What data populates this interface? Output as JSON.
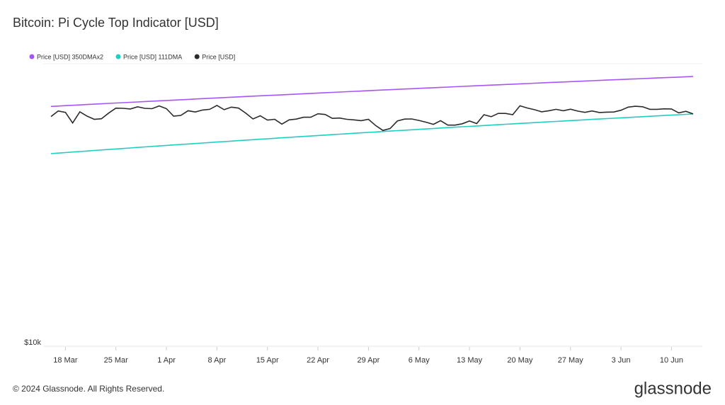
{
  "chart_data": {
    "type": "line",
    "title": "Bitcoin: Pi Cycle Top Indicator [USD]",
    "categories": [
      null,
      null,
      "18 Mar",
      null,
      null,
      null,
      null,
      null,
      null,
      "25 Mar",
      null,
      null,
      null,
      null,
      null,
      null,
      "1 Apr",
      null,
      null,
      null,
      null,
      null,
      null,
      "8 Apr",
      null,
      null,
      null,
      null,
      null,
      null,
      "15 Apr",
      null,
      null,
      null,
      null,
      null,
      null,
      "22 Apr",
      null,
      null,
      null,
      null,
      null,
      null,
      "29 Apr",
      null,
      null,
      null,
      null,
      null,
      null,
      "6 May",
      null,
      null,
      null,
      null,
      null,
      null,
      "13 May",
      null,
      null,
      null,
      null,
      null,
      null,
      "20 May",
      null,
      null,
      null,
      null,
      null,
      null,
      "27 May",
      null,
      null,
      null,
      null,
      null,
      null,
      "3 Jun",
      null,
      null,
      null,
      null,
      null,
      null,
      "10 Jun",
      null,
      null,
      null
    ],
    "log_scale": true,
    "ylim": [
      10000,
      100000
    ],
    "yticks": [
      {
        "value": 10000,
        "label": "$10k"
      }
    ],
    "grid": true,
    "series": [
      {
        "name": "Price [USD] 350DMAx2",
        "color": "#a855f7",
        "values": [
          71000,
          71225,
          71450,
          71675,
          71900,
          72125,
          72350,
          72575,
          72800,
          73025,
          73250,
          73475,
          73700,
          73925,
          74150,
          74375,
          74600,
          74825,
          75050,
          75275,
          75500,
          75725,
          75950,
          76175,
          76400,
          76625,
          76850,
          77075,
          77300,
          77525,
          77750,
          77975,
          78200,
          78425,
          78650,
          78875,
          79100,
          79325,
          79550,
          79775,
          80000,
          80225,
          80450,
          80675,
          80900,
          81125,
          81350,
          81575,
          81800,
          82025,
          82250,
          82475,
          82700,
          82925,
          83150,
          83375,
          83600,
          83825,
          84050,
          84275,
          84500,
          84725,
          84950,
          85175,
          85400,
          85625,
          85850,
          86075,
          86300,
          86525,
          86750,
          86975,
          87200,
          87425,
          87650,
          87875,
          88100,
          88325,
          88550,
          88775,
          89000,
          89225,
          89450,
          89675,
          89900,
          90125,
          90350,
          90575,
          90800,
          91025
        ]
      },
      {
        "name": "Price [USD] 111DMA",
        "color": "#1fcfc1",
        "values": [
          48000,
          48210,
          48420,
          48630,
          48840,
          49050,
          49260,
          49470,
          49680,
          49890,
          50100,
          50310,
          50520,
          50730,
          50940,
          51150,
          51360,
          51570,
          51780,
          51990,
          52200,
          52410,
          52620,
          52830,
          53040,
          53250,
          53460,
          53670,
          53880,
          54090,
          54300,
          54510,
          54720,
          54930,
          55140,
          55350,
          55560,
          55770,
          55980,
          56190,
          56400,
          56610,
          56820,
          57030,
          57240,
          57450,
          57660,
          57870,
          58080,
          58290,
          58500,
          58710,
          58920,
          59130,
          59340,
          59550,
          59760,
          59970,
          60180,
          60390,
          60600,
          60810,
          61020,
          61230,
          61440,
          61650,
          61860,
          62070,
          62280,
          62490,
          62700,
          62910,
          63120,
          63330,
          63540,
          63750,
          63960,
          64170,
          64380,
          64590,
          64800,
          65010,
          65220,
          65430,
          65640,
          65850,
          66060,
          66270,
          66480,
          66690
        ]
      },
      {
        "name": "Price [USD]",
        "color": "#2b2b2b",
        "values": [
          65300,
          68400,
          67600,
          61900,
          67900,
          65500,
          63800,
          64100,
          67200,
          70000,
          69900,
          69500,
          70800,
          69900,
          69700,
          71300,
          69700,
          65500,
          65900,
          68500,
          67800,
          68900,
          69300,
          71600,
          69100,
          70600,
          70000,
          67100,
          64000,
          65700,
          63400,
          63800,
          61300,
          63500,
          63900,
          64900,
          64900,
          66800,
          66400,
          64300,
          64500,
          63800,
          63500,
          63100,
          63800,
          60600,
          58200,
          59100,
          62900,
          63900,
          64000,
          63200,
          62300,
          61200,
          63100,
          60800,
          60800,
          61500,
          62900,
          61600,
          66300,
          65200,
          67000,
          67000,
          66300,
          71400,
          70100,
          69100,
          67900,
          68500,
          69300,
          68500,
          69400,
          68300,
          67600,
          68400,
          67500,
          67700,
          67800,
          68800,
          70600,
          71100,
          70800,
          69300,
          69300,
          69600,
          69500,
          67300,
          68200,
          66700
        ]
      }
    ]
  },
  "footer": {
    "copyright": "© 2024 Glassnode. All Rights Reserved.",
    "brand": "glassnode"
  }
}
